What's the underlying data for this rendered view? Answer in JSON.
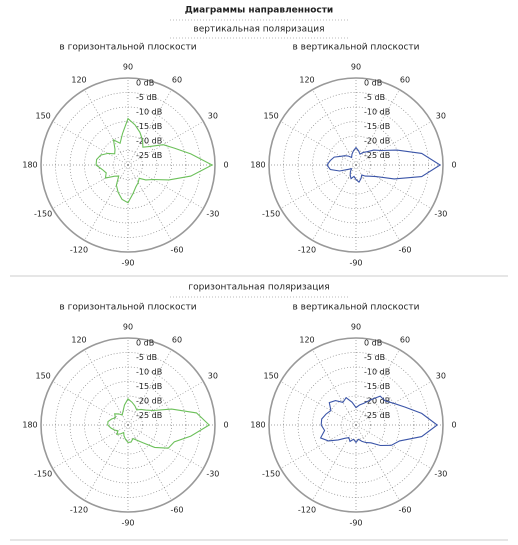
{
  "header": {
    "title": "Диаграммы направленности"
  },
  "sections": [
    {
      "title": "вертикальная поляризация"
    },
    {
      "title": "горизонтальная поляризация"
    }
  ],
  "chart_data": [
    {
      "type": "polar",
      "title": "в горизонтальной плоскости",
      "rlim": [
        -30,
        0
      ],
      "rticks": [
        {
          "value": 0,
          "label": "0 dB"
        },
        {
          "value": -5,
          "label": "-5 dB"
        },
        {
          "value": -10,
          "label": "-10 dB"
        },
        {
          "value": -15,
          "label": "-15 dB"
        },
        {
          "value": -20,
          "label": "-20 dB"
        },
        {
          "value": -25,
          "label": "-25 dB"
        }
      ],
      "thetaticks": [
        90,
        60,
        30,
        0,
        -30,
        -60,
        -90,
        -120,
        -150,
        180,
        150,
        120
      ],
      "series": [
        {
          "color": "#6cc05a",
          "theta": [
            -180,
            -170,
            -160,
            -150,
            -140,
            -130,
            -120,
            -110,
            -100,
            -90,
            -80,
            -70,
            -60,
            -50,
            -40,
            -30,
            -20,
            -10,
            0,
            10,
            20,
            30,
            40,
            50,
            60,
            70,
            80,
            90,
            100,
            110,
            120,
            130,
            140,
            150,
            160,
            170
          ],
          "values": [
            -19,
            -21,
            -22,
            -21,
            -24,
            -25,
            -22,
            -20,
            -18,
            -17,
            -20,
            -22,
            -23,
            -24,
            -22,
            -20,
            -15,
            -8,
            -1,
            -8,
            -13,
            -16,
            -20,
            -22,
            -20,
            -18,
            -16,
            -14,
            -19,
            -22,
            -20,
            -23,
            -24,
            -22,
            -20,
            -19
          ]
        }
      ]
    },
    {
      "type": "polar",
      "title": "в вертикальной плоскости",
      "rlim": [
        -30,
        0
      ],
      "rticks": [
        {
          "value": 0,
          "label": "0 dB"
        },
        {
          "value": -5,
          "label": "-5 dB"
        },
        {
          "value": -10,
          "label": "-10 dB"
        },
        {
          "value": -15,
          "label": "-15 dB"
        },
        {
          "value": -20,
          "label": "-20 dB"
        },
        {
          "value": -25,
          "label": "-25 dB"
        }
      ],
      "thetaticks": [
        90,
        60,
        30,
        0,
        -30,
        -60,
        -90,
        -120,
        -150,
        180,
        150,
        120
      ],
      "series": [
        {
          "color": "#3b55a8",
          "theta": [
            -180,
            -170,
            -160,
            -150,
            -140,
            -130,
            -120,
            -110,
            -100,
            -90,
            -80,
            -70,
            -60,
            -50,
            -40,
            -30,
            -20,
            -10,
            0,
            10,
            20,
            30,
            40,
            50,
            60,
            70,
            80,
            90,
            100,
            110,
            120,
            130,
            140,
            150,
            160,
            170
          ],
          "values": [
            -20,
            -21,
            -24,
            -27,
            -28,
            -27,
            -26,
            -25,
            -26,
            -25,
            -24,
            -25,
            -26,
            -25,
            -24,
            -22,
            -16,
            -7,
            -1,
            -7,
            -15,
            -20,
            -22,
            -24,
            -25,
            -26,
            -25,
            -24,
            -25,
            -26,
            -27,
            -26,
            -25,
            -24,
            -22,
            -21
          ]
        }
      ]
    },
    {
      "type": "polar",
      "title": "в горизонтальной плоскости",
      "rlim": [
        -30,
        0
      ],
      "rticks": [
        {
          "value": 0,
          "label": "0 dB"
        },
        {
          "value": -5,
          "label": "-5 dB"
        },
        {
          "value": -10,
          "label": "-10 dB"
        },
        {
          "value": -15,
          "label": "-15 dB"
        },
        {
          "value": -20,
          "label": "-20 dB"
        },
        {
          "value": -25,
          "label": "-25 dB"
        }
      ],
      "thetaticks": [
        90,
        60,
        30,
        0,
        -30,
        -60,
        -90,
        -120,
        -150,
        180,
        150,
        120
      ],
      "series": [
        {
          "color": "#6cc05a",
          "theta": [
            -180,
            -170,
            -160,
            -150,
            -140,
            -130,
            -120,
            -110,
            -100,
            -90,
            -80,
            -70,
            -60,
            -50,
            -40,
            -30,
            -20,
            -10,
            0,
            10,
            20,
            30,
            40,
            50,
            60,
            70,
            80,
            90,
            100,
            110,
            120,
            130,
            140,
            150,
            160,
            170
          ],
          "values": [
            -23,
            -24,
            -25,
            -26,
            -25,
            -26,
            -27,
            -26,
            -25,
            -24,
            -24,
            -25,
            -24,
            -22,
            -18,
            -14,
            -13,
            -8,
            -2,
            -6,
            -14,
            -20,
            -22,
            -23,
            -24,
            -23,
            -22,
            -21,
            -23,
            -25,
            -26,
            -25,
            -24,
            -25,
            -24,
            -23
          ]
        }
      ]
    },
    {
      "type": "polar",
      "title": "в вертикальной плоскости",
      "rlim": [
        -30,
        0
      ],
      "rticks": [
        {
          "value": 0,
          "label": "0 dB"
        },
        {
          "value": -5,
          "label": "-5 dB"
        },
        {
          "value": -10,
          "label": "-10 dB"
        },
        {
          "value": -15,
          "label": "-15 dB"
        },
        {
          "value": -20,
          "label": "-20 dB"
        },
        {
          "value": -25,
          "label": "-25 dB"
        }
      ],
      "thetaticks": [
        90,
        60,
        30,
        0,
        -30,
        -60,
        -90,
        -120,
        -150,
        180,
        150,
        120
      ],
      "series": [
        {
          "color": "#3b55a8",
          "theta": [
            -180,
            -170,
            -160,
            -150,
            -140,
            -130,
            -120,
            -110,
            -100,
            -90,
            -80,
            -70,
            -60,
            -50,
            -40,
            -30,
            -20,
            -10,
            0,
            10,
            20,
            30,
            40,
            50,
            60,
            70,
            80,
            90,
            100,
            110,
            120,
            130,
            140,
            150,
            160,
            170
          ],
          "values": [
            -18,
            -19,
            -17,
            -19,
            -22,
            -24,
            -25,
            -24,
            -25,
            -24,
            -25,
            -24,
            -23,
            -22,
            -19,
            -16,
            -14,
            -7,
            -2,
            -7,
            -12,
            -15,
            -17,
            -17,
            -20,
            -22,
            -23,
            -24,
            -22,
            -20,
            -21,
            -19,
            -18,
            -20,
            -19,
            -18
          ]
        }
      ]
    }
  ]
}
